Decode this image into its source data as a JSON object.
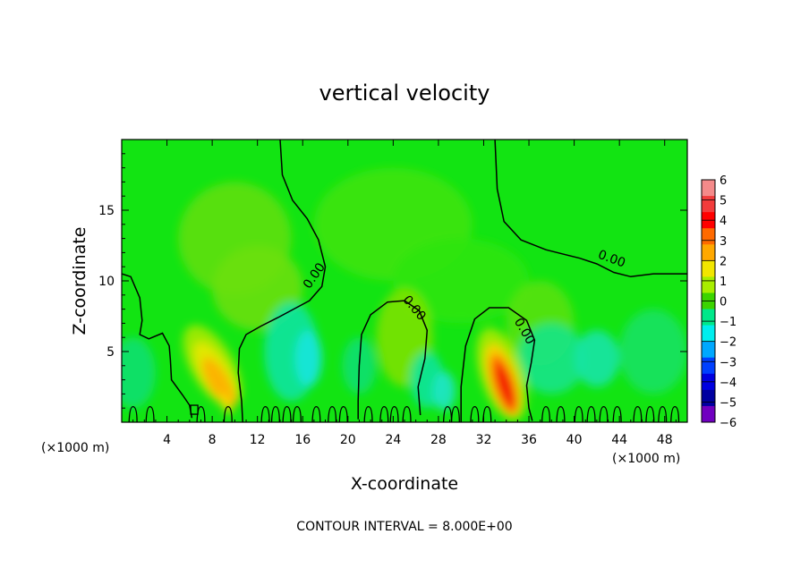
{
  "chart_data": {
    "type": "heatmap",
    "title": "vertical velocity",
    "xlabel": "X-coordinate",
    "ylabel": "Z-coordinate",
    "x_unit_left": "(×1000 m)",
    "x_unit_right": "(×1000 m)",
    "xlim": [
      0,
      50
    ],
    "ylim": [
      0,
      20
    ],
    "x_ticks": [
      4,
      8,
      12,
      16,
      20,
      24,
      28,
      32,
      36,
      40,
      44,
      48
    ],
    "y_ticks": [
      5,
      10,
      15
    ],
    "contour_labels": [
      "0.00",
      "0.00",
      "0.00",
      "0.00"
    ],
    "contour_interval_text": "CONTOUR INTERVAL = 8.000E+00",
    "colorbar": {
      "ticks": [
        6,
        5,
        4,
        3,
        2,
        1,
        0,
        -1,
        -2,
        -3,
        -4,
        -5,
        -6
      ],
      "colors": [
        "#f48a8a",
        "#f23c3c",
        "#ff0000",
        "#ff6a00",
        "#ffa800",
        "#f2e600",
        "#a8ee00",
        "#3cd400",
        "#00e88a",
        "#00eeee",
        "#00a8ff",
        "#0040ff",
        "#0000e0",
        "#0000a0",
        "#7000c0"
      ]
    },
    "field_background": "#12e412",
    "features": [
      {
        "name": "updraft",
        "x": 8.5,
        "z": 2.8,
        "peak": 3
      },
      {
        "name": "updraft",
        "x": 33.8,
        "z": 2.6,
        "peak": 4
      },
      {
        "name": "downdraft",
        "x": 16.5,
        "z": 4.5,
        "peak": -2
      },
      {
        "name": "positive region",
        "x": 25,
        "z": 6.5,
        "peak": 1
      }
    ]
  }
}
